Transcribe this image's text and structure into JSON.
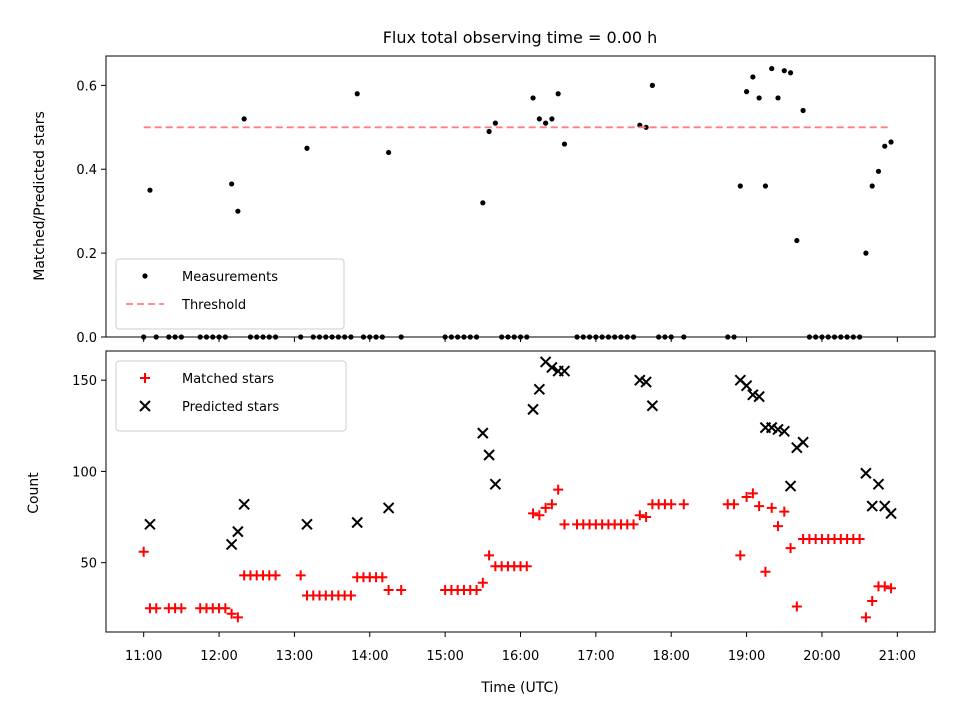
{
  "chart_data": [
    {
      "type": "scatter",
      "title": "Flux total observing time = 0.00 h",
      "xlabel": "",
      "ylabel": "Matched/Predicted stars",
      "xlim": [
        "10:30",
        "21:30"
      ],
      "ylim": [
        0,
        0.67
      ],
      "yticks": [
        "0.0",
        "0.2",
        "0.4",
        "0.6"
      ],
      "legend_position": "bottom-left",
      "series": [
        {
          "name": "Measurements",
          "marker": "dot",
          "color": "#000000",
          "points": [
            [
              "11:00",
              0
            ],
            [
              "11:05",
              0.35
            ],
            [
              "11:10",
              0
            ],
            [
              "11:20",
              0
            ],
            [
              "11:25",
              0
            ],
            [
              "11:30",
              0
            ],
            [
              "11:45",
              0
            ],
            [
              "11:50",
              0
            ],
            [
              "11:55",
              0
            ],
            [
              "12:00",
              0
            ],
            [
              "12:05",
              0
            ],
            [
              "12:10",
              0.365
            ],
            [
              "12:15",
              0.3
            ],
            [
              "12:20",
              0.52
            ],
            [
              "12:25",
              0
            ],
            [
              "12:30",
              0
            ],
            [
              "12:35",
              0
            ],
            [
              "12:40",
              0
            ],
            [
              "12:45",
              0
            ],
            [
              "13:05",
              0
            ],
            [
              "13:10",
              0.45
            ],
            [
              "13:15",
              0
            ],
            [
              "13:20",
              0
            ],
            [
              "13:25",
              0
            ],
            [
              "13:30",
              0
            ],
            [
              "13:35",
              0
            ],
            [
              "13:40",
              0
            ],
            [
              "13:45",
              0
            ],
            [
              "13:50",
              0.58
            ],
            [
              "13:55",
              0
            ],
            [
              "14:00",
              0
            ],
            [
              "14:05",
              0
            ],
            [
              "14:10",
              0
            ],
            [
              "14:15",
              0.44
            ],
            [
              "14:25",
              0
            ],
            [
              "15:00",
              0
            ],
            [
              "15:05",
              0
            ],
            [
              "15:10",
              0
            ],
            [
              "15:15",
              0
            ],
            [
              "15:20",
              0
            ],
            [
              "15:25",
              0
            ],
            [
              "15:30",
              0.32
            ],
            [
              "15:35",
              0.49
            ],
            [
              "15:40",
              0.51
            ],
            [
              "15:45",
              0
            ],
            [
              "15:50",
              0
            ],
            [
              "15:55",
              0
            ],
            [
              "16:00",
              0
            ],
            [
              "16:05",
              0
            ],
            [
              "16:10",
              0.57
            ],
            [
              "16:15",
              0.52
            ],
            [
              "16:20",
              0.51
            ],
            [
              "16:25",
              0.52
            ],
            [
              "16:30",
              0.58
            ],
            [
              "16:35",
              0.46
            ],
            [
              "16:45",
              0
            ],
            [
              "16:50",
              0
            ],
            [
              "16:55",
              0
            ],
            [
              "17:00",
              0
            ],
            [
              "17:05",
              0
            ],
            [
              "17:10",
              0
            ],
            [
              "17:15",
              0
            ],
            [
              "17:20",
              0
            ],
            [
              "17:25",
              0
            ],
            [
              "17:30",
              0
            ],
            [
              "17:35",
              0.505
            ],
            [
              "17:40",
              0.5
            ],
            [
              "17:45",
              0.6
            ],
            [
              "17:50",
              0
            ],
            [
              "17:55",
              0
            ],
            [
              "18:00",
              0
            ],
            [
              "18:10",
              0
            ],
            [
              "18:45",
              0
            ],
            [
              "18:50",
              0
            ],
            [
              "18:55",
              0.36
            ],
            [
              "19:00",
              0.585
            ],
            [
              "19:05",
              0.62
            ],
            [
              "19:10",
              0.57
            ],
            [
              "19:15",
              0.36
            ],
            [
              "19:20",
              0.64
            ],
            [
              "19:25",
              0.57
            ],
            [
              "19:30",
              0.635
            ],
            [
              "19:35",
              0.63
            ],
            [
              "19:40",
              0.23
            ],
            [
              "19:45",
              0.54
            ],
            [
              "19:50",
              0
            ],
            [
              "19:55",
              0
            ],
            [
              "20:00",
              0
            ],
            [
              "20:05",
              0
            ],
            [
              "20:10",
              0
            ],
            [
              "20:15",
              0
            ],
            [
              "20:20",
              0
            ],
            [
              "20:25",
              0
            ],
            [
              "20:30",
              0
            ],
            [
              "20:35",
              0.2
            ],
            [
              "20:40",
              0.36
            ],
            [
              "20:45",
              0.395
            ],
            [
              "20:50",
              0.455
            ],
            [
              "20:55",
              0.465
            ]
          ]
        },
        {
          "name": "Threshold",
          "marker": "dashed-line",
          "color": "#ff7f7f",
          "points": [
            [
              "11:00",
              0.5
            ],
            [
              "20:55",
              0.5
            ]
          ]
        }
      ]
    },
    {
      "type": "scatter",
      "title": "",
      "xlabel": "Time (UTC)",
      "ylabel": "Count",
      "xlim": [
        "10:30",
        "21:30"
      ],
      "ylim": [
        12,
        166
      ],
      "yticks": [
        "50",
        "100",
        "150"
      ],
      "xticks": [
        "11:00",
        "12:00",
        "13:00",
        "14:00",
        "15:00",
        "16:00",
        "17:00",
        "18:00",
        "19:00",
        "20:00",
        "21:00"
      ],
      "legend_position": "top-left",
      "series": [
        {
          "name": "Matched stars",
          "marker": "plus",
          "color": "#ff0000",
          "points": [
            [
              "11:00",
              56
            ],
            [
              "11:05",
              25
            ],
            [
              "11:10",
              25
            ],
            [
              "11:20",
              25
            ],
            [
              "11:25",
              25
            ],
            [
              "11:30",
              25
            ],
            [
              "11:45",
              25
            ],
            [
              "11:50",
              25
            ],
            [
              "11:55",
              25
            ],
            [
              "12:00",
              25
            ],
            [
              "12:05",
              25
            ],
            [
              "12:10",
              22
            ],
            [
              "12:15",
              20
            ],
            [
              "12:20",
              43
            ],
            [
              "12:25",
              43
            ],
            [
              "12:30",
              43
            ],
            [
              "12:35",
              43
            ],
            [
              "12:40",
              43
            ],
            [
              "12:45",
              43
            ],
            [
              "13:05",
              43
            ],
            [
              "13:10",
              32
            ],
            [
              "13:15",
              32
            ],
            [
              "13:20",
              32
            ],
            [
              "13:25",
              32
            ],
            [
              "13:30",
              32
            ],
            [
              "13:35",
              32
            ],
            [
              "13:40",
              32
            ],
            [
              "13:45",
              32
            ],
            [
              "13:50",
              42
            ],
            [
              "13:55",
              42
            ],
            [
              "14:00",
              42
            ],
            [
              "14:05",
              42
            ],
            [
              "14:10",
              42
            ],
            [
              "14:15",
              35
            ],
            [
              "14:25",
              35
            ],
            [
              "15:00",
              35
            ],
            [
              "15:05",
              35
            ],
            [
              "15:10",
              35
            ],
            [
              "15:15",
              35
            ],
            [
              "15:20",
              35
            ],
            [
              "15:25",
              35
            ],
            [
              "15:30",
              39
            ],
            [
              "15:35",
              54
            ],
            [
              "15:40",
              48
            ],
            [
              "15:45",
              48
            ],
            [
              "15:50",
              48
            ],
            [
              "15:55",
              48
            ],
            [
              "16:00",
              48
            ],
            [
              "16:05",
              48
            ],
            [
              "16:10",
              77
            ],
            [
              "16:15",
              76
            ],
            [
              "16:20",
              80
            ],
            [
              "16:25",
              82
            ],
            [
              "16:30",
              90
            ],
            [
              "16:35",
              71
            ],
            [
              "16:45",
              71
            ],
            [
              "16:50",
              71
            ],
            [
              "16:55",
              71
            ],
            [
              "17:00",
              71
            ],
            [
              "17:05",
              71
            ],
            [
              "17:10",
              71
            ],
            [
              "17:15",
              71
            ],
            [
              "17:20",
              71
            ],
            [
              "17:25",
              71
            ],
            [
              "17:30",
              71
            ],
            [
              "17:35",
              76
            ],
            [
              "17:40",
              75
            ],
            [
              "17:45",
              82
            ],
            [
              "17:50",
              82
            ],
            [
              "17:55",
              82
            ],
            [
              "18:00",
              82
            ],
            [
              "18:10",
              82
            ],
            [
              "18:45",
              82
            ],
            [
              "18:50",
              82
            ],
            [
              "18:55",
              54
            ],
            [
              "19:00",
              86
            ],
            [
              "19:05",
              88
            ],
            [
              "19:10",
              81
            ],
            [
              "19:15",
              45
            ],
            [
              "19:20",
              80
            ],
            [
              "19:25",
              70
            ],
            [
              "19:30",
              78
            ],
            [
              "19:35",
              58
            ],
            [
              "19:40",
              26
            ],
            [
              "19:45",
              63
            ],
            [
              "19:50",
              63
            ],
            [
              "19:55",
              63
            ],
            [
              "20:00",
              63
            ],
            [
              "20:05",
              63
            ],
            [
              "20:10",
              63
            ],
            [
              "20:15",
              63
            ],
            [
              "20:20",
              63
            ],
            [
              "20:25",
              63
            ],
            [
              "20:30",
              63
            ],
            [
              "20:35",
              20
            ],
            [
              "20:40",
              29
            ],
            [
              "20:45",
              37
            ],
            [
              "20:50",
              37
            ],
            [
              "20:55",
              36
            ]
          ]
        },
        {
          "name": "Predicted stars",
          "marker": "x",
          "color": "#000000",
          "points": [
            [
              "11:05",
              71
            ],
            [
              "12:10",
              60
            ],
            [
              "12:15",
              67
            ],
            [
              "12:20",
              82
            ],
            [
              "13:10",
              71
            ],
            [
              "13:50",
              72
            ],
            [
              "14:15",
              80
            ],
            [
              "15:30",
              121
            ],
            [
              "15:35",
              109
            ],
            [
              "15:40",
              93
            ],
            [
              "16:10",
              134
            ],
            [
              "16:15",
              145
            ],
            [
              "16:20",
              160
            ],
            [
              "16:25",
              157
            ],
            [
              "16:30",
              155
            ],
            [
              "16:35",
              155
            ],
            [
              "17:35",
              150
            ],
            [
              "17:40",
              149
            ],
            [
              "17:45",
              136
            ],
            [
              "18:55",
              150
            ],
            [
              "19:00",
              147
            ],
            [
              "19:05",
              142
            ],
            [
              "19:10",
              141
            ],
            [
              "19:15",
              124
            ],
            [
              "19:20",
              124
            ],
            [
              "19:25",
              123
            ],
            [
              "19:30",
              122
            ],
            [
              "19:35",
              92
            ],
            [
              "19:40",
              113
            ],
            [
              "19:45",
              116
            ],
            [
              "20:35",
              99
            ],
            [
              "20:40",
              81
            ],
            [
              "20:45",
              93
            ],
            [
              "20:50",
              81
            ],
            [
              "20:55",
              77
            ]
          ]
        }
      ]
    }
  ]
}
